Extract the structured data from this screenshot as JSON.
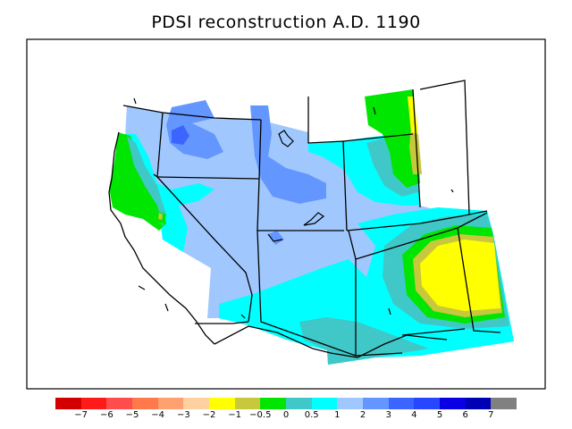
{
  "title": "PDSI reconstruction A.D. 1190",
  "legend": {
    "colors": [
      "#d40000",
      "#ff1a1a",
      "#ff4d4d",
      "#ff7a4a",
      "#ffa070",
      "#ffd0a0",
      "#ffff00",
      "#c8c83c",
      "#00e600",
      "#40c8c8",
      "#00ffff",
      "#a0c8ff",
      "#6496ff",
      "#3c64ff",
      "#2846ff",
      "#0a00e6",
      "#0000b4",
      "#808080"
    ],
    "labels": [
      "−7",
      "−6",
      "−5",
      "−4",
      "−3",
      "−2",
      "−1",
      "−0.5",
      "0",
      "0.5",
      "1",
      "2",
      "3",
      "4",
      "5",
      "6",
      "7"
    ]
  },
  "palette": {
    "light_blue": "#a0c8ff",
    "medium_blue": "#6496ff",
    "dark_blue": "#3c64ff",
    "cyan": "#00ffff",
    "teal": "#40c8c8",
    "green": "#00e600",
    "olive": "#c8c83c",
    "yellow": "#ffff00"
  }
}
